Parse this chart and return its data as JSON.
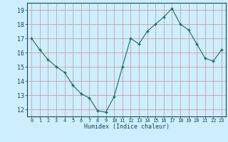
{
  "x": [
    0,
    1,
    2,
    3,
    4,
    5,
    6,
    7,
    8,
    9,
    10,
    11,
    12,
    13,
    14,
    15,
    16,
    17,
    18,
    19,
    20,
    21,
    22,
    23
  ],
  "y": [
    17.0,
    16.2,
    15.5,
    15.0,
    14.6,
    13.7,
    13.1,
    12.8,
    11.9,
    11.8,
    12.9,
    15.0,
    17.0,
    16.6,
    17.5,
    18.0,
    18.5,
    19.1,
    18.0,
    17.6,
    16.6,
    15.6,
    15.4,
    16.2
  ],
  "xlabel": "Humidex (Indice chaleur)",
  "bg_color": "#cceeff",
  "grid_color": "#d09090",
  "line_color": "#1a6b5a",
  "marker_color": "#1a6b5a",
  "ylim": [
    11.5,
    19.5
  ],
  "xlim": [
    -0.5,
    23.5
  ],
  "yticks": [
    12,
    13,
    14,
    15,
    16,
    17,
    18,
    19
  ],
  "xticks": [
    0,
    1,
    2,
    3,
    4,
    5,
    6,
    7,
    8,
    9,
    10,
    11,
    12,
    13,
    14,
    15,
    16,
    17,
    18,
    19,
    20,
    21,
    22,
    23
  ],
  "xlabel_fontsize": 6.0,
  "ytick_fontsize": 6.0,
  "xtick_fontsize": 5.0
}
